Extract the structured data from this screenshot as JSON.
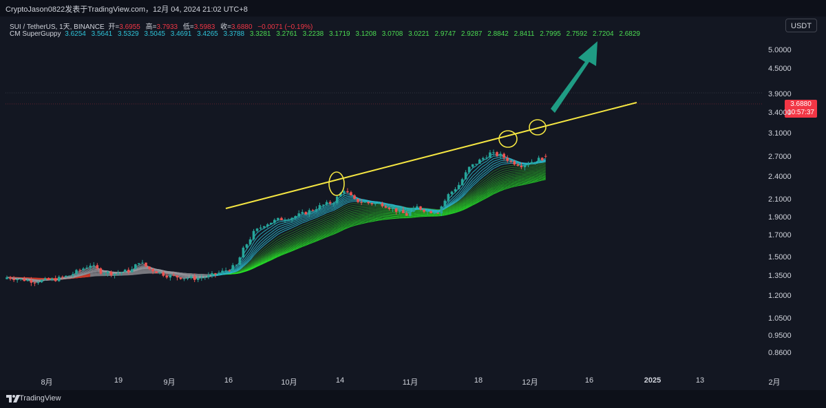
{
  "header": {
    "title": "CryptoJason0822发表于TradingView.com，12月 04, 2024 21:02 UTC+8"
  },
  "legend": {
    "symbol": "SUI / TetherUS, 1天, BINANCE",
    "open_label": "开=",
    "open": "3.6955",
    "high_label": "高=",
    "high": "3.7933",
    "low_label": "低=",
    "low": "3.5983",
    "close_label": "收=",
    "close": "3.6880",
    "change": "−0.0071 (−0.19%)"
  },
  "indicator": {
    "name": "CM SuperGuppy",
    "fast_values": [
      "3.6254",
      "3.5641",
      "3.5329",
      "3.5045",
      "3.4691",
      "3.4265",
      "3.3788"
    ],
    "slow_values": [
      "3.3281",
      "3.2761",
      "3.2238",
      "3.1719",
      "3.1208",
      "3.0708",
      "3.0221",
      "2.9747",
      "2.9287",
      "2.8842",
      "2.8411",
      "2.7995",
      "2.7592",
      "2.7204",
      "2.6829"
    ]
  },
  "currency": "USDT",
  "price_tag": {
    "value": "3.6880",
    "countdown": "10:57:37"
  },
  "footer": {
    "brand": "TradingView"
  },
  "colors": {
    "up": "#26a69a",
    "down": "#ef5350",
    "trendline": "#f5e642",
    "arrow": "#1f9c84",
    "background": "#131722"
  },
  "chart_data": {
    "type": "candlestick",
    "scale": "log",
    "y_tick_labels": [
      "5.0000",
      "4.5000",
      "3.9000",
      "3.4000",
      "3.1000",
      "2.7000",
      "2.4000",
      "2.1000",
      "1.9000",
      "1.7000",
      "1.5000",
      "1.3500",
      "1.2000",
      "1.0500",
      "0.9500",
      "0.8600"
    ],
    "x_tick_labels": [
      "8月",
      "19",
      "9月",
      "16",
      "10月",
      "14",
      "11月",
      "18",
      "12月",
      "16",
      "2025",
      "13",
      "2月"
    ],
    "ylim": [
      0.78,
      5.5
    ],
    "annotations": [
      "yellow ascending trendline from ~2.00 to ~3.80",
      "green upward arrow",
      "yellow circles marking touches of trendline"
    ]
  }
}
